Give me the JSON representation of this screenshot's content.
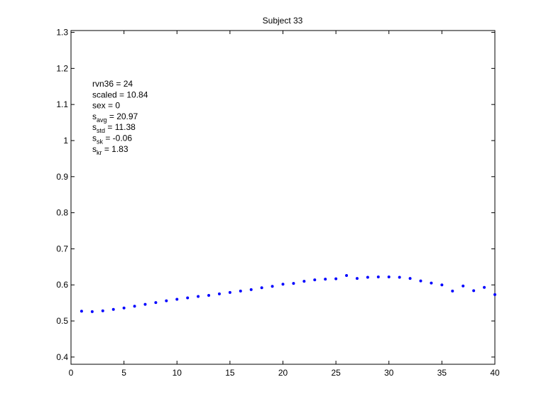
{
  "chart_data": {
    "type": "scatter",
    "title": "Subject 33",
    "xlabel": "",
    "ylabel": "",
    "xlim": [
      0,
      40
    ],
    "ylim": [
      0.38,
      1.305
    ],
    "xticks": [
      0,
      5,
      10,
      15,
      20,
      25,
      30,
      35,
      40
    ],
    "xtick_labels": [
      "0",
      "5",
      "10",
      "15",
      "20",
      "25",
      "30",
      "35",
      "40"
    ],
    "yticks": [
      0.4,
      0.5,
      0.6,
      0.7,
      0.8,
      0.9,
      1.0,
      1.1,
      1.2,
      1.3
    ],
    "ytick_labels": [
      "0.4",
      "0.5",
      "0.6",
      "0.7",
      "0.8",
      "0.9",
      "1",
      "1.1",
      "1.2",
      "1.3"
    ],
    "grid": false,
    "marker_color": "#0000ff",
    "x": [
      1,
      2,
      3,
      4,
      5,
      6,
      7,
      8,
      9,
      10,
      11,
      12,
      13,
      14,
      15,
      16,
      17,
      18,
      19,
      20,
      21,
      22,
      23,
      24,
      25,
      26,
      27,
      28,
      29,
      30,
      31,
      32,
      33,
      34,
      35,
      36,
      37,
      38,
      39,
      40
    ],
    "y": [
      0.527,
      0.526,
      0.528,
      0.532,
      0.536,
      0.541,
      0.546,
      0.551,
      0.556,
      0.56,
      0.564,
      0.568,
      0.571,
      0.575,
      0.579,
      0.583,
      0.587,
      0.592,
      0.596,
      0.602,
      0.604,
      0.61,
      0.614,
      0.616,
      0.617,
      0.626,
      0.618,
      0.621,
      0.622,
      0.622,
      0.621,
      0.618,
      0.611,
      0.605,
      0.6,
      0.583,
      0.597,
      0.584,
      0.593,
      0.573
    ],
    "annotations": [
      {
        "main": "rvn36 = 24",
        "sub": "",
        "rest": ""
      },
      {
        "main": "scaled = 10.84",
        "sub": "",
        "rest": ""
      },
      {
        "main": "sex   = 0",
        "sub": "",
        "rest": ""
      },
      {
        "main": "s",
        "sub": "avg",
        "rest": " = 20.97"
      },
      {
        "main": "s",
        "sub": "std",
        "rest": " = 11.38"
      },
      {
        "main": "s",
        "sub": "sk",
        "rest": " = -0.06"
      },
      {
        "main": "s",
        "sub": "kr",
        "rest": " = 1.83"
      }
    ]
  }
}
